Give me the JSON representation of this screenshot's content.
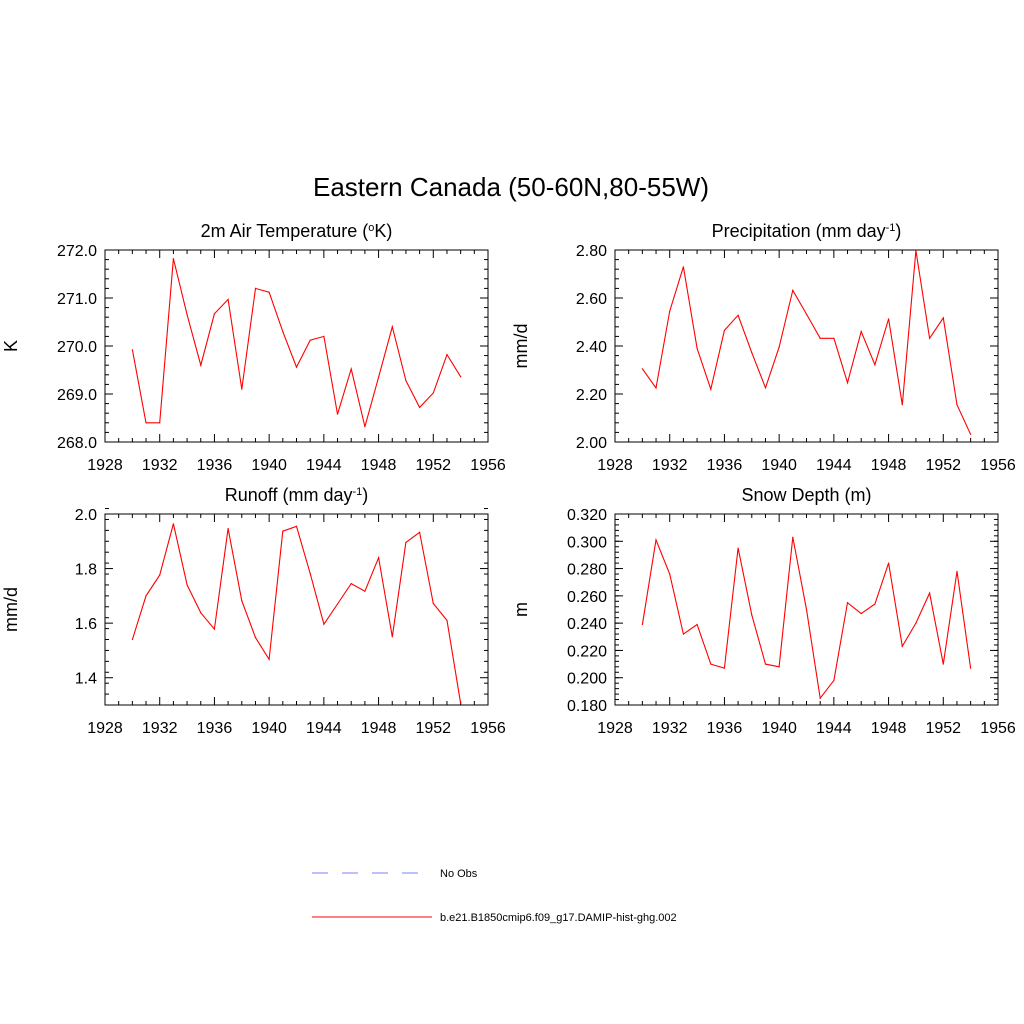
{
  "figure": {
    "title": "Eastern Canada (50-60N,80-55W)"
  },
  "colors": {
    "model_line": "#ff0000",
    "obs_line": "#9999ff",
    "axis": "#000000"
  },
  "legend": {
    "placement": "bottom-center",
    "entries": [
      {
        "label": "No Obs",
        "style": "dashed",
        "color": "#9999ff"
      },
      {
        "label": "b.e21.B1850cmip6.f09_g17.DAMIP-hist-ghg.002",
        "style": "solid",
        "color": "#ff0000"
      }
    ]
  },
  "chart_data": [
    {
      "type": "line",
      "title_parts": [
        "2m Air Temperature (",
        "o",
        "K)"
      ],
      "title_sup_index": 1,
      "ylabel": "K",
      "xlim": [
        1928,
        1956
      ],
      "ylim": [
        268.0,
        272.0
      ],
      "x_ticks": [
        "1928",
        "1932",
        "1936",
        "1940",
        "1944",
        "1948",
        "1952",
        "1956"
      ],
      "y_ticks": [
        "268.0",
        "269.0",
        "270.0",
        "271.0",
        "272.0"
      ],
      "y_minor_step": 0.2,
      "grid": false,
      "series": [
        {
          "x": [
            1930,
            1931,
            1932,
            1933,
            1934,
            1935,
            1936,
            1937,
            1938,
            1939,
            1940,
            1941,
            1942,
            1943,
            1944,
            1945,
            1946,
            1947,
            1948,
            1949,
            1950,
            1951,
            1952,
            1953,
            1954
          ],
          "values": [
            269.92,
            268.4,
            268.4,
            271.82,
            270.65,
            269.6,
            270.67,
            270.97,
            269.1,
            271.2,
            271.12,
            270.3,
            269.56,
            270.12,
            270.2,
            268.58,
            269.52,
            268.32,
            269.35,
            270.4,
            269.28,
            268.72,
            269.02,
            269.82,
            269.36
          ]
        }
      ]
    },
    {
      "type": "line",
      "title_parts": [
        "Precipitation (mm day",
        "-1",
        ")"
      ],
      "title_sup_index": 1,
      "ylabel": "mm/d",
      "xlim": [
        1928,
        1956
      ],
      "ylim": [
        2.0,
        2.8
      ],
      "x_ticks": [
        "1928",
        "1932",
        "1936",
        "1940",
        "1944",
        "1948",
        "1952",
        "1956"
      ],
      "y_ticks": [
        "2.00",
        "2.20",
        "2.40",
        "2.60",
        "2.80"
      ],
      "y_minor_step": 0.04,
      "grid": false,
      "series": [
        {
          "x": [
            1930,
            1931,
            1932,
            1933,
            1934,
            1935,
            1936,
            1937,
            1938,
            1939,
            1940,
            1941,
            1942,
            1943,
            1944,
            1945,
            1946,
            1947,
            1948,
            1949,
            1950,
            1951,
            1952,
            1953,
            1954
          ],
          "values": [
            2.305,
            2.225,
            2.545,
            2.73,
            2.39,
            2.22,
            2.465,
            2.528,
            2.372,
            2.226,
            2.395,
            2.632,
            2.533,
            2.432,
            2.432,
            2.247,
            2.46,
            2.322,
            2.513,
            2.155,
            2.798,
            2.432,
            2.517,
            2.155,
            2.032
          ]
        }
      ]
    },
    {
      "type": "line",
      "title_parts": [
        "Runoff (mm day",
        "-1",
        ")"
      ],
      "title_sup_index": 1,
      "ylabel": "mm/d",
      "xlim": [
        1928,
        1956
      ],
      "ylim": [
        1.3,
        2.0
      ],
      "x_ticks": [
        "1928",
        "1932",
        "1936",
        "1940",
        "1944",
        "1948",
        "1952",
        "1956"
      ],
      "y_ticks": [
        "1.4",
        "1.6",
        "1.8",
        "2.0"
      ],
      "y_tick_values": [
        1.4,
        1.6,
        1.8,
        2.0
      ],
      "y_minor_step": 0.04,
      "grid": false,
      "series": [
        {
          "x": [
            1930,
            1931,
            1932,
            1933,
            1934,
            1935,
            1936,
            1937,
            1938,
            1939,
            1940,
            1941,
            1942,
            1943,
            1944,
            1945,
            1946,
            1947,
            1948,
            1949,
            1950,
            1951,
            1952,
            1953,
            1954
          ],
          "values": [
            1.54,
            1.7,
            1.776,
            1.964,
            1.74,
            1.638,
            1.578,
            1.947,
            1.682,
            1.547,
            1.467,
            1.937,
            1.955,
            1.782,
            1.596,
            1.67,
            1.745,
            1.717,
            1.84,
            1.55,
            1.896,
            1.933,
            1.672,
            1.61,
            1.307
          ]
        }
      ]
    },
    {
      "type": "line",
      "title_parts": [
        "Snow Depth (m)"
      ],
      "title_sup_index": -1,
      "ylabel": "m",
      "xlim": [
        1928,
        1956
      ],
      "ylim": [
        0.18,
        0.32
      ],
      "x_ticks": [
        "1928",
        "1932",
        "1936",
        "1940",
        "1944",
        "1948",
        "1952",
        "1956"
      ],
      "y_ticks": [
        "0.180",
        "0.200",
        "0.220",
        "0.240",
        "0.260",
        "0.280",
        "0.300",
        "0.320"
      ],
      "y_minor_step": 0.004,
      "grid": false,
      "series": [
        {
          "x": [
            1930,
            1931,
            1932,
            1933,
            1934,
            1935,
            1936,
            1937,
            1938,
            1939,
            1940,
            1941,
            1942,
            1943,
            1944,
            1945,
            1946,
            1947,
            1948,
            1949,
            1950,
            1951,
            1952,
            1953,
            1954
          ],
          "values": [
            0.239,
            0.301,
            0.276,
            0.232,
            0.239,
            0.21,
            0.207,
            0.295,
            0.246,
            0.21,
            0.208,
            0.303,
            0.25,
            0.185,
            0.198,
            0.255,
            0.247,
            0.254,
            0.284,
            0.223,
            0.24,
            0.262,
            0.21,
            0.278,
            0.207
          ]
        }
      ]
    }
  ]
}
